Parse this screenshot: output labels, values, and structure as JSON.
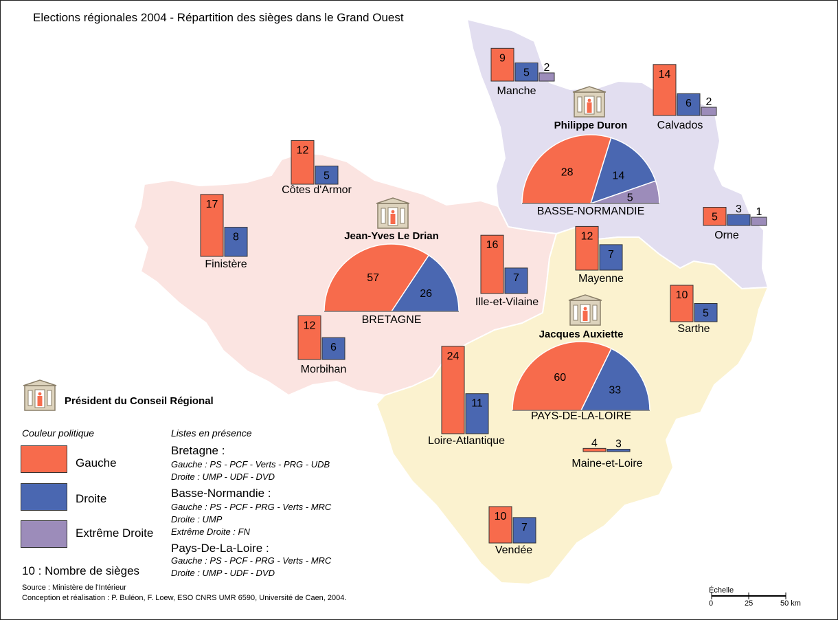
{
  "title": "Elections régionales 2004 - Répartition des sièges dans le Grand Ouest",
  "colors": {
    "gauche": "#f76b4c",
    "droite": "#4a67b1",
    "extreme": "#9c8cba",
    "bretagne_fill": "#fbe4e1",
    "normandie_fill": "#e2def0",
    "pdl_fill": "#fbf2cf"
  },
  "regions": [
    {
      "name": "BRETAGNE",
      "president": "Jean-Yves Le Drian",
      "seats": {
        "gauche": 57,
        "droite": 26
      }
    },
    {
      "name": "BASSE-NORMANDIE",
      "president": "Philippe Duron",
      "seats": {
        "gauche": 28,
        "droite": 14,
        "extreme": 5
      }
    },
    {
      "name": "PAYS-DE-LA-LOIRE",
      "president": "Jacques Auxiette",
      "seats": {
        "gauche": 60,
        "droite": 33
      }
    }
  ],
  "departments": [
    {
      "name": "Manche",
      "seats": [
        9,
        5,
        2
      ]
    },
    {
      "name": "Calvados",
      "seats": [
        14,
        6,
        2
      ]
    },
    {
      "name": "Orne",
      "seats": [
        5,
        3,
        1
      ]
    },
    {
      "name": "Côtes d'Armor",
      "seats": [
        12,
        5
      ]
    },
    {
      "name": "Finistère",
      "seats": [
        17,
        8
      ]
    },
    {
      "name": "Ille-et-Vilaine",
      "seats": [
        16,
        7
      ]
    },
    {
      "name": "Morbihan",
      "seats": [
        12,
        6
      ]
    },
    {
      "name": "Mayenne",
      "seats": [
        12,
        7
      ]
    },
    {
      "name": "Sarthe",
      "seats": [
        10,
        5
      ]
    },
    {
      "name": "Loire-Atlantique",
      "seats": [
        24,
        11
      ]
    },
    {
      "name": "Maine-et-Loire",
      "seats": [
        4,
        3
      ]
    },
    {
      "name": "Vendée",
      "seats": [
        10,
        7
      ]
    }
  ],
  "legend": {
    "president": "Président du Conseil Régional",
    "color_heading": "Couleur politique",
    "gauche": "Gauche",
    "droite": "Droite",
    "extreme": "Extrême Droite",
    "seats_note": "10 : Nombre de sièges"
  },
  "lists": {
    "heading": "Listes en présence",
    "bretagne": {
      "name": "Bretagne :",
      "l1": "Gauche : PS - PCF - Verts - PRG - UDB",
      "l2": "Droite : UMP - UDF - DVD"
    },
    "normandie": {
      "name": "Basse-Normandie :",
      "l1": "Gauche : PS - PCF - PRG - Verts - MRC",
      "l2": "Droite : UMP",
      "l3": "Extrême Droite : FN"
    },
    "pdl": {
      "name": "Pays-De-La-Loire :",
      "l1": "Gauche : PS - PCF - PRG - Verts - MRC",
      "l2": "Droite : UMP - UDF - DVD"
    }
  },
  "source": "Source : Ministère de l'Intérieur",
  "credits": "Conception et réalisation :  P. Buléon, F. Loew, ESO CNRS UMR 6590, Université de Caen, 2004.",
  "scale": {
    "title": "Échelle",
    "t0": "0",
    "t1": "25",
    "t2": "50 km"
  }
}
